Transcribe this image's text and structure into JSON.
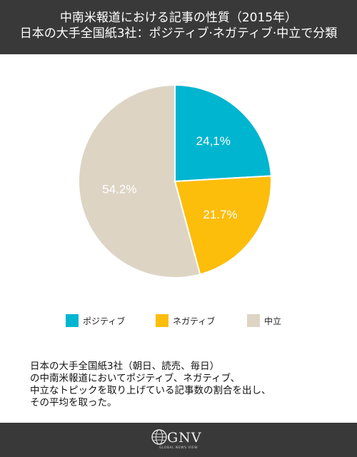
{
  "header": {
    "title_line1": "中南米報道における記事の性質（2015年）",
    "title_line2": "日本の大手全国紙3社：ポジティブ·ネガティブ·中立で分類"
  },
  "chart_data": {
    "type": "pie",
    "slices": [
      {
        "label": "ポジティブ",
        "value": 24.1,
        "display": "24,1%",
        "color": "#00b5d0"
      },
      {
        "label": "ネガティブ",
        "value": 21.7,
        "display": "21.7%",
        "color": "#fdbd0b"
      },
      {
        "label": "中立",
        "value": 54.2,
        "display": "54.2%",
        "color": "#ddd4c4"
      }
    ],
    "legend_position": "bottom",
    "start": "top, clockwise"
  },
  "note": {
    "lines": [
      "日本の大手全国紙3社（朝日、読売、毎日）",
      "の中南米報道においてポジティブ、ネガティブ、",
      "中立なトピックを取り上げている記事数の割合を出し、",
      "その平均を取った。"
    ]
  },
  "footer": {
    "logo_text": "GNV",
    "logo_subtext": "GLOBAL NEWS VIEW"
  }
}
